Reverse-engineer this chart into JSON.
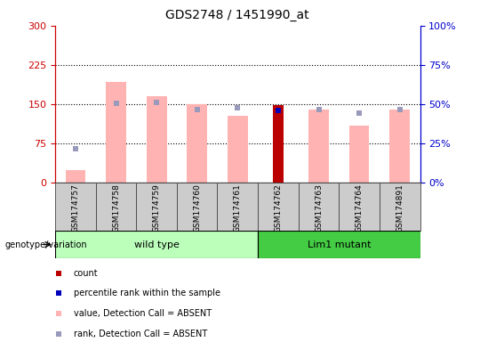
{
  "title": "GDS2748 / 1451990_at",
  "samples": [
    "GSM174757",
    "GSM174758",
    "GSM174759",
    "GSM174760",
    "GSM174761",
    "GSM174762",
    "GSM174763",
    "GSM174764",
    "GSM174891"
  ],
  "pink_bar_heights": [
    25,
    193,
    165,
    150,
    128,
    0,
    140,
    110,
    140
  ],
  "blue_sq_heights": [
    65,
    152,
    153,
    140,
    143,
    0,
    140,
    133,
    140
  ],
  "red_bar_heights": [
    0,
    0,
    0,
    0,
    0,
    148,
    0,
    0,
    0
  ],
  "dark_blue_sq": [
    0,
    0,
    0,
    0,
    0,
    138,
    0,
    0,
    0
  ],
  "ylim_left": [
    0,
    300
  ],
  "ylim_right": [
    0,
    100
  ],
  "yticks_left": [
    0,
    75,
    150,
    225,
    300
  ],
  "yticks_right": [
    0,
    25,
    50,
    75,
    100
  ],
  "dotted_lines": [
    75,
    150,
    225
  ],
  "left_axis_color": "#cc0000",
  "right_axis_color": "#0000cc",
  "pink_color": "#ffb3b3",
  "light_blue_color": "#9999bb",
  "red_bar_color": "#bb0000",
  "dark_blue_color": "#0000bb",
  "wild_type_color": "#bbffbb",
  "lim1_mutant_color": "#44cc44",
  "bg_color": "#cccccc",
  "n_wild": 5,
  "n_mutant": 4,
  "legend_items": [
    {
      "color": "#bb0000",
      "label": "count"
    },
    {
      "color": "#0000bb",
      "label": "percentile rank within the sample"
    },
    {
      "color": "#ffb3b3",
      "label": "value, Detection Call = ABSENT"
    },
    {
      "color": "#9999bb",
      "label": "rank, Detection Call = ABSENT"
    }
  ]
}
